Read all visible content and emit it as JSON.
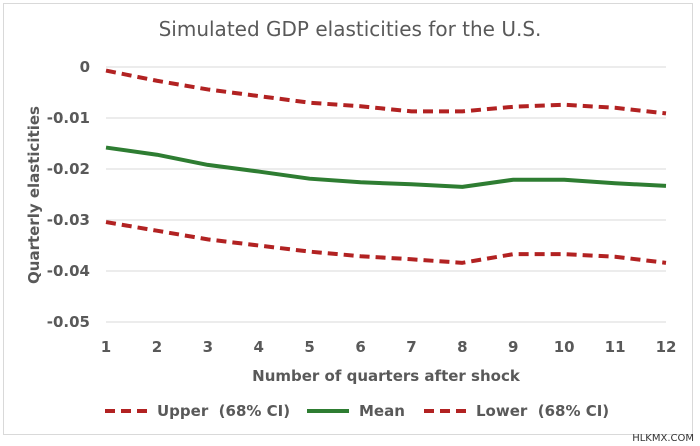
{
  "chart_data": {
    "type": "line",
    "title": "Simulated  GDP elasticities  for the U.S.",
    "xlabel": "Number of quarters after shock",
    "ylabel": "Quarterly elasticities",
    "x": [
      1,
      2,
      3,
      4,
      5,
      6,
      7,
      8,
      9,
      10,
      11,
      12
    ],
    "ylim": [
      -0.05,
      0
    ],
    "yticks": [
      0,
      -0.01,
      -0.02,
      -0.03,
      -0.04,
      -0.05
    ],
    "ytick_labels": [
      "0",
      "-0.01",
      "-0.02",
      "-0.03",
      "-0.04",
      "-0.05"
    ],
    "grid": "horizontal",
    "legend_position": "bottom",
    "series": [
      {
        "name": "Upper  (68% CI)",
        "style": "dashed",
        "color": "#b22222",
        "values": [
          -0.0007,
          -0.0027,
          -0.0044,
          -0.0057,
          -0.007,
          -0.0077,
          -0.0087,
          -0.0087,
          -0.0078,
          -0.0074,
          -0.008,
          -0.0091
        ]
      },
      {
        "name": "Mean",
        "style": "solid",
        "color": "#2e7d32",
        "values": [
          -0.0158,
          -0.0172,
          -0.0192,
          -0.0205,
          -0.0219,
          -0.0226,
          -0.023,
          -0.0235,
          -0.0221,
          -0.0221,
          -0.0228,
          -0.0233
        ]
      },
      {
        "name": "Lower  (68% CI)",
        "style": "dashed",
        "color": "#b22222",
        "values": [
          -0.0304,
          -0.0321,
          -0.0338,
          -0.035,
          -0.0362,
          -0.0371,
          -0.0377,
          -0.0384,
          -0.0367,
          -0.0367,
          -0.0372,
          -0.0384
        ]
      }
    ]
  },
  "watermark": "HLKMX.COM"
}
